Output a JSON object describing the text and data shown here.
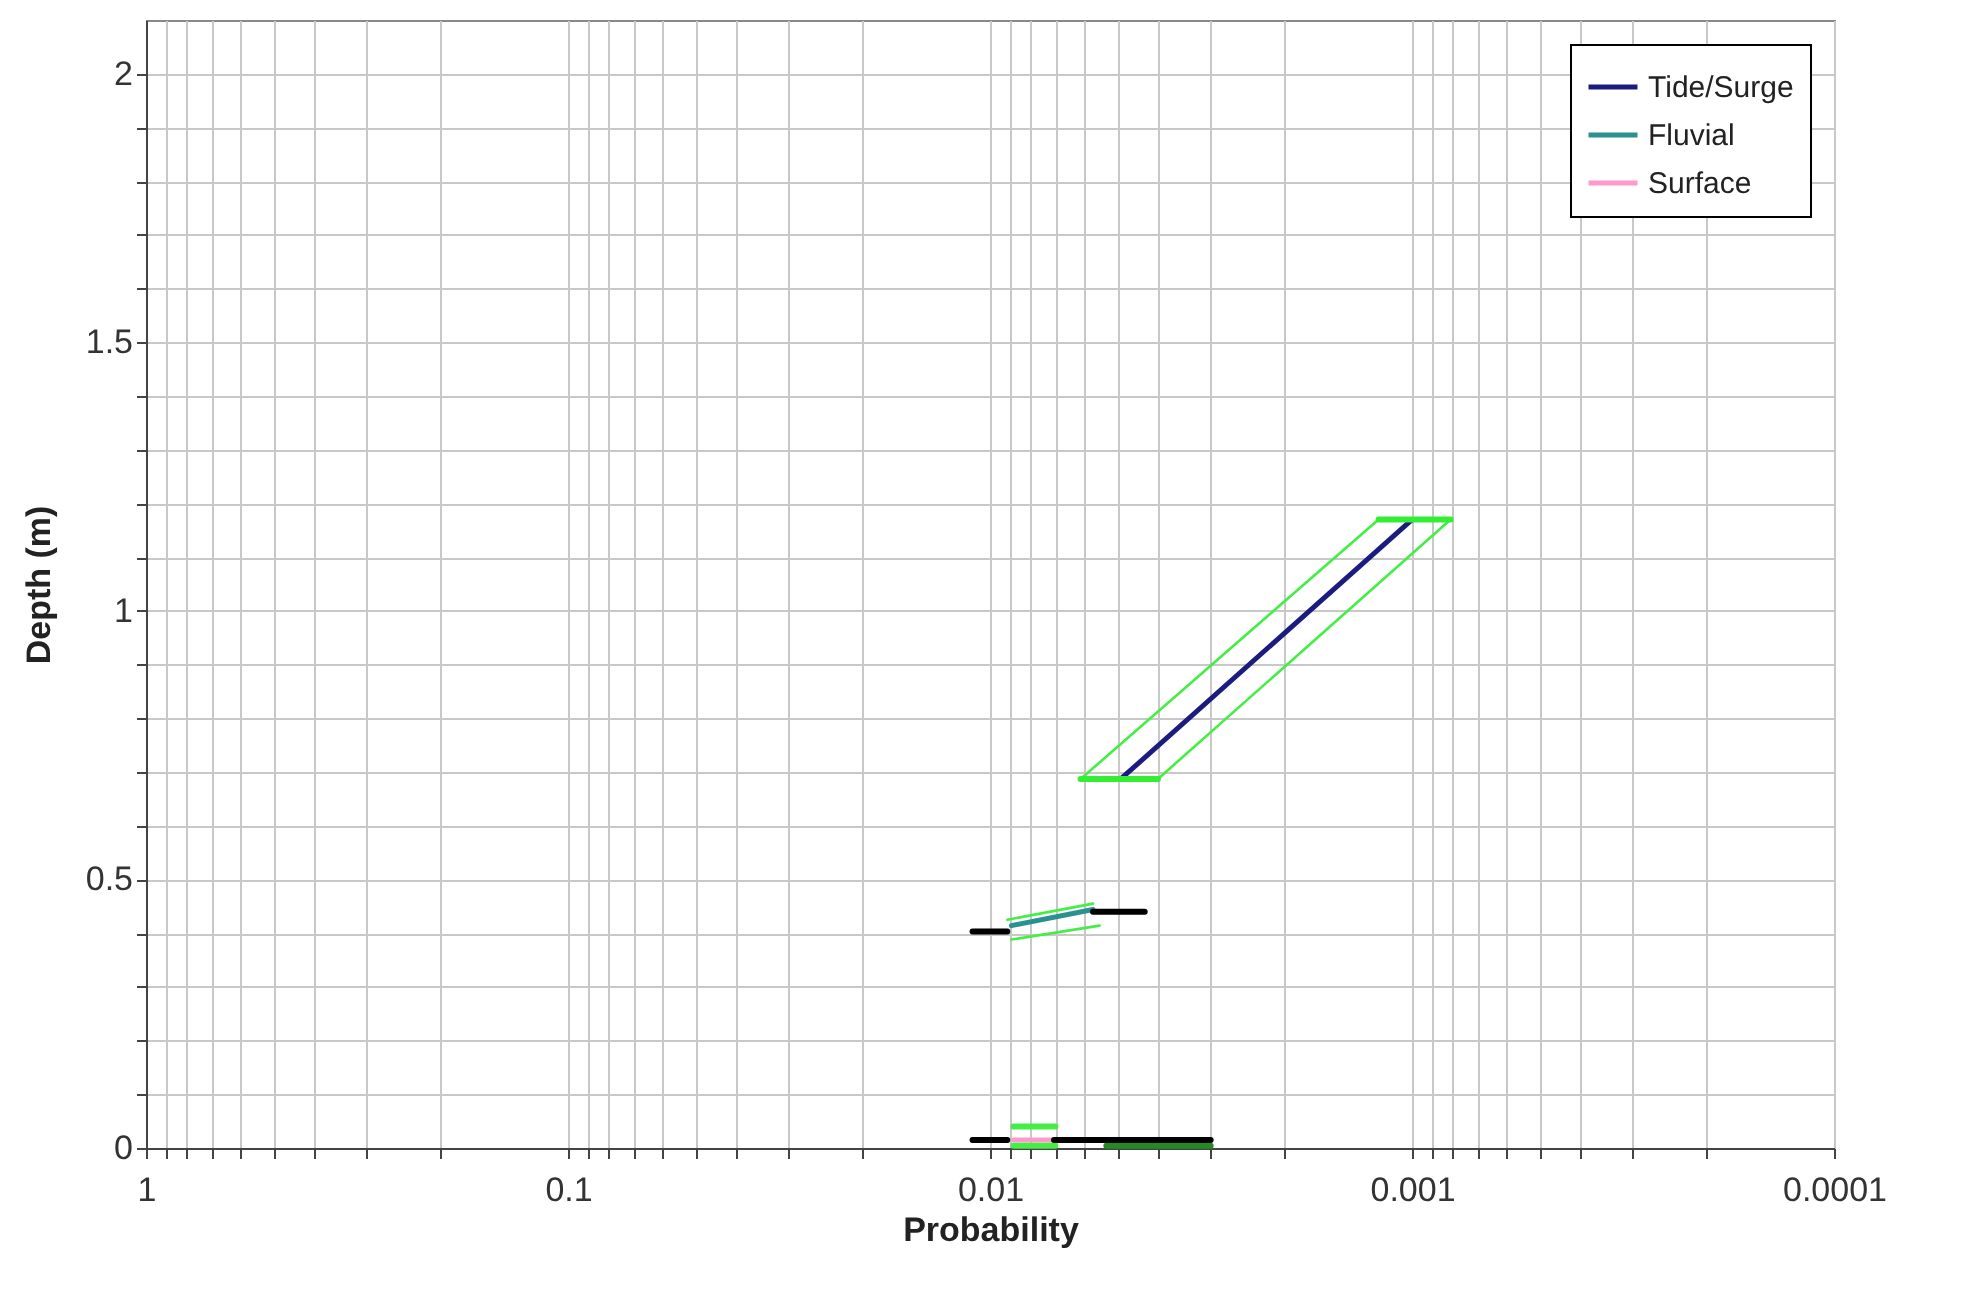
{
  "chart_data": {
    "type": "line",
    "xlabel": "Probability",
    "ylabel": "Depth (m)",
    "log": "x",
    "grid": true,
    "legend": "top right",
    "xlim": [
      1,
      0.0001
    ],
    "xticks": [
      1,
      {
        "value": 0.9,
        "label": null
      },
      {
        "value": 0.8,
        "label": null
      },
      {
        "value": 0.7,
        "label": null
      },
      {
        "value": 0.6,
        "label": null
      },
      {
        "value": 0.5,
        "label": null
      },
      {
        "value": 0.4,
        "label": null
      },
      {
        "value": 0.3,
        "label": null
      },
      {
        "value": 0.2,
        "label": null
      },
      0.1,
      {
        "value": 0.09,
        "label": null
      },
      {
        "value": 0.08,
        "label": null
      },
      {
        "value": 0.07,
        "label": null
      },
      {
        "value": 0.06,
        "label": null
      },
      {
        "value": 0.05,
        "label": null
      },
      {
        "value": 0.04,
        "label": null
      },
      {
        "value": 0.03,
        "label": null
      },
      {
        "value": 0.02,
        "label": null
      },
      0.01,
      {
        "value": 0.009,
        "label": null
      },
      {
        "value": 0.008,
        "label": null
      },
      {
        "value": 0.007,
        "label": null
      },
      {
        "value": 0.006,
        "label": null
      },
      {
        "value": 0.005,
        "label": null
      },
      {
        "value": 0.004,
        "label": null
      },
      {
        "value": 0.003,
        "label": null
      },
      {
        "value": 0.002,
        "label": null
      },
      0.001,
      {
        "value": 0.0009,
        "label": null
      },
      {
        "value": 0.0008,
        "label": null
      },
      {
        "value": 0.0007,
        "label": null
      },
      {
        "value": 0.0006,
        "label": null
      },
      {
        "value": 0.0005,
        "label": null
      },
      {
        "value": 0.0004,
        "label": null
      },
      {
        "value": 0.0003,
        "label": null
      },
      {
        "value": 0.0002,
        "label": null
      },
      0.0001
    ],
    "ylim": [
      0,
      2.1
    ],
    "yticks": [
      0,
      {
        "value": 0.1,
        "label": null
      },
      {
        "value": 0.2,
        "label": null
      },
      {
        "value": 0.3,
        "label": null
      },
      {
        "value": 0.4,
        "label": null
      },
      0.5,
      {
        "value": 0.6,
        "label": null
      },
      {
        "value": 0.7,
        "label": null
      },
      {
        "value": 0.8,
        "label": null
      },
      {
        "value": 0.9,
        "label": null
      },
      1,
      {
        "value": 1.1,
        "label": null
      },
      {
        "value": 1.2,
        "label": null
      },
      {
        "value": 1.3,
        "label": null
      },
      {
        "value": 1.4,
        "label": null
      },
      1.5,
      {
        "value": 1.6,
        "label": null
      },
      {
        "value": 1.7,
        "label": null
      },
      {
        "value": 1.8,
        "label": null
      },
      {
        "value": 1.9,
        "label": null
      },
      2
    ],
    "series": [
      {
        "name": "Tide/Surge",
        "color": "#1c1c80",
        "x": [
          0.0049,
          0.001
        ],
        "values": [
          0.687,
          1.17
        ]
      },
      {
        "name": "Fluvial",
        "color": "#2a9090",
        "x": [
          0.0089,
          0.0057
        ],
        "values": [
          0.414,
          0.444
        ]
      },
      {
        "name": "Surface",
        "color": "#ff99cc",
        "x": [
          0.0088,
          0.007
        ],
        "values": [
          0.015,
          0.015
        ]
      },
      {
        "color": "#44ee44",
        "x": [
          0.0061,
          0.0012
        ],
        "values": [
          0.687,
          1.17
        ]
      },
      {
        "color": "#44ee44",
        "x": [
          0.004,
          0.00081
        ],
        "values": [
          0.687,
          1.17
        ]
      },
      {
        "color": "#44ee44",
        "x": [
          0.0091,
          0.0057
        ],
        "values": [
          0.425,
          0.455
        ]
      },
      {
        "color": "#44ee44",
        "x": [
          0.0089,
          0.0055
        ],
        "values": [
          0.388,
          0.414
        ]
      },
      {
        "color": "#44ee44",
        "x": [
          0.0088,
          0.007
        ],
        "values": [
          0.04,
          0.04
        ]
      },
      {
        "color": "#44ee44",
        "x": [
          0.0088,
          0.007
        ],
        "values": [
          0.004,
          0.004
        ]
      },
      {
        "color": "#228b22",
        "x": [
          0.0053,
          0.003
        ],
        "values": [
          0.004,
          0.004
        ]
      },
      {
        "color": "#33ee33",
        "x": [
          0.0061,
          0.004
        ],
        "values": [
          0.687,
          0.687
        ]
      },
      {
        "color": "#33ee33",
        "x": [
          0.0012,
          0.00081
        ],
        "values": [
          1.17,
          1.17
        ]
      },
      {
        "color": "#000000",
        "x": [
          0.011,
          0.0091
        ],
        "values": [
          0.403,
          0.403
        ]
      },
      {
        "color": "#000000",
        "x": [
          0.0057,
          0.0043
        ],
        "values": [
          0.44,
          0.44
        ]
      },
      {
        "color": "#000000",
        "x": [
          0.011,
          0.0091
        ],
        "values": [
          0.015,
          0.015
        ]
      },
      {
        "color": "#000000",
        "x": [
          0.00705,
          0.003
        ],
        "values": [
          0.015,
          0.015
        ]
      }
    ]
  }
}
